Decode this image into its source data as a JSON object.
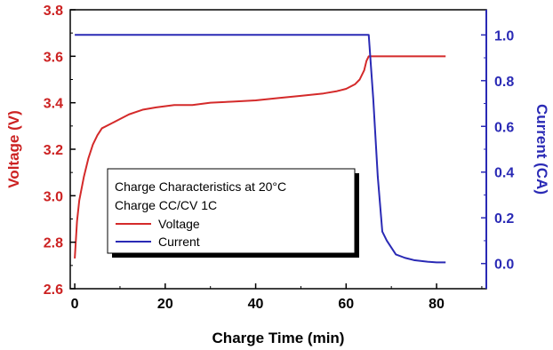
{
  "chart_data": {
    "type": "line",
    "xlabel": "Charge Time (min)",
    "ylabel_left": "Voltage (V)",
    "ylabel_right": "Current (CA)",
    "xlim": [
      -1,
      91
    ],
    "ylim_left": [
      2.6,
      3.8
    ],
    "ylim_right": [
      -0.11,
      1.11
    ],
    "x_ticks": [
      0,
      20,
      40,
      60,
      80
    ],
    "y_left_ticks": [
      2.6,
      2.8,
      3.0,
      3.2,
      3.4,
      3.6,
      3.8
    ],
    "y_left_tick_labels": [
      "2.6",
      "2.8",
      "3.0",
      "3.2",
      "3.4",
      "3.6",
      "3.8"
    ],
    "y_right_ticks": [
      0.0,
      0.2,
      0.4,
      0.6,
      0.8,
      1.0
    ],
    "y_right_tick_labels": [
      "0.0",
      "0.2",
      "0.4",
      "0.6",
      "0.8",
      "1.0"
    ],
    "grid": false,
    "legend": {
      "placement": "lower-left",
      "title_lines": [
        "Charge Characteristics at 20°C",
        "Charge CC/CV 1C"
      ]
    },
    "colors": {
      "voltage": "#d42a2a",
      "current": "#2a2ab5",
      "right_axis": "#2a2ab5",
      "left_axis": "#cc2222"
    },
    "series": [
      {
        "name": "Voltage",
        "axis": "left",
        "x": [
          0,
          0.5,
          1,
          2,
          3,
          4,
          5,
          6,
          8,
          10,
          12,
          15,
          18,
          22,
          26,
          30,
          35,
          40,
          45,
          50,
          55,
          58,
          60,
          62,
          63,
          64,
          64.5,
          65,
          70,
          75,
          80,
          82
        ],
        "y": [
          2.73,
          2.89,
          2.98,
          3.08,
          3.16,
          3.22,
          3.26,
          3.29,
          3.31,
          3.33,
          3.35,
          3.37,
          3.38,
          3.39,
          3.39,
          3.4,
          3.405,
          3.41,
          3.42,
          3.43,
          3.44,
          3.45,
          3.46,
          3.48,
          3.5,
          3.54,
          3.58,
          3.6,
          3.6,
          3.6,
          3.6,
          3.6
        ]
      },
      {
        "name": "Current",
        "axis": "right",
        "x": [
          0,
          10,
          20,
          30,
          40,
          50,
          60,
          64,
          65,
          66,
          67,
          68,
          69,
          70,
          71,
          73,
          75,
          78,
          80,
          82
        ],
        "y": [
          1.0,
          1.0,
          1.0,
          1.0,
          1.0,
          1.0,
          1.0,
          1.0,
          1.0,
          0.72,
          0.38,
          0.14,
          0.1,
          0.07,
          0.04,
          0.025,
          0.015,
          0.008,
          0.005,
          0.005
        ]
      }
    ]
  }
}
